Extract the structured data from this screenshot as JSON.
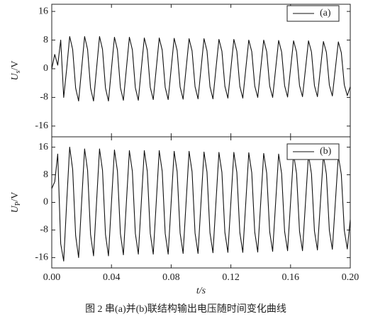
{
  "caption": "图 2  串(a)并(b)联结构输出电压随时间变化曲线",
  "chart_data": [
    {
      "type": "line",
      "y_label": "U",
      "y_label_sub": "s",
      "y_label_unit": "/V",
      "xlim": [
        0,
        0.2
      ],
      "xticks": [
        0,
        0.04,
        0.08,
        0.12,
        0.16,
        0.2
      ],
      "ylim": [
        -19,
        18
      ],
      "yticks": [
        -16,
        -8,
        0,
        8,
        16
      ],
      "legend": "upper right",
      "x": [
        0,
        0.002,
        0.004,
        0.006,
        0.008,
        0.01,
        0.012,
        0.014,
        0.016,
        0.018,
        0.02,
        0.022,
        0.024,
        0.026,
        0.028,
        0.03,
        0.032,
        0.034,
        0.036,
        0.038,
        0.04,
        0.042,
        0.044,
        0.046,
        0.048,
        0.05,
        0.052,
        0.054,
        0.056,
        0.058,
        0.06,
        0.062,
        0.064,
        0.066,
        0.068,
        0.07,
        0.072,
        0.074,
        0.076,
        0.078,
        0.08,
        0.082,
        0.084,
        0.086,
        0.088,
        0.09,
        0.092,
        0.094,
        0.096,
        0.098,
        0.1,
        0.102,
        0.104,
        0.106,
        0.108,
        0.11,
        0.112,
        0.114,
        0.116,
        0.118,
        0.12,
        0.122,
        0.124,
        0.126,
        0.128,
        0.13,
        0.132,
        0.134,
        0.136,
        0.138,
        0.14,
        0.142,
        0.144,
        0.146,
        0.148,
        0.15,
        0.152,
        0.154,
        0.156,
        0.158,
        0.16,
        0.162,
        0.164,
        0.166,
        0.168,
        0.17,
        0.172,
        0.174,
        0.176,
        0.178,
        0.18,
        0.182,
        0.184,
        0.186,
        0.188,
        0.19,
        0.192,
        0.194,
        0.196,
        0.198,
        0.2
      ],
      "series": [
        {
          "name": "(a)",
          "color": "#111111",
          "values": [
            0,
            4,
            1,
            8,
            -8,
            0,
            9,
            5.4,
            -5.4,
            -9,
            0,
            9,
            5.4,
            -5.4,
            -9,
            0,
            9,
            5.4,
            -5.4,
            -9,
            0,
            8.8,
            5.3,
            -5.3,
            -8.8,
            0,
            8.8,
            5.3,
            -5.3,
            -8.8,
            0,
            8.6,
            5.2,
            -5.2,
            -8.6,
            0,
            8.6,
            5.2,
            -5.2,
            -8.6,
            0,
            8.5,
            5.1,
            -5.1,
            -8.5,
            0,
            8.4,
            5,
            -5,
            -8.4,
            0,
            8.4,
            5,
            -5,
            -8.4,
            0,
            8.2,
            4.9,
            -4.9,
            -8.2,
            0,
            8.2,
            4.9,
            -4.9,
            -8.2,
            0,
            8,
            4.8,
            -4.8,
            -8,
            0,
            8,
            4.8,
            -4.8,
            -8,
            0,
            7.9,
            4.7,
            -4.7,
            -7.9,
            0,
            7.8,
            4.7,
            -4.7,
            -7.8,
            0,
            7.8,
            4.7,
            -4.7,
            -7.8,
            0,
            7.6,
            4.6,
            -4.6,
            -7.6,
            0,
            7.5,
            4.5,
            -4.5,
            -7.5,
            -5
          ]
        }
      ]
    },
    {
      "type": "line",
      "y_label": "U",
      "y_label_sub": "P",
      "y_label_unit": "/V",
      "x_label": "t/s",
      "xlim": [
        0,
        0.2
      ],
      "xticks": [
        {
          "value": 0,
          "label": "0.00"
        },
        0.04,
        0.08,
        0.12,
        0.16,
        {
          "value": 0.2,
          "label": "0.20"
        }
      ],
      "ylim": [
        -19,
        19
      ],
      "yticks": [
        -16,
        -8,
        0,
        8,
        16
      ],
      "legend": "upper right",
      "x": [
        0,
        0.002,
        0.004,
        0.006,
        0.008,
        0.01,
        0.012,
        0.014,
        0.016,
        0.018,
        0.02,
        0.022,
        0.024,
        0.026,
        0.028,
        0.03,
        0.032,
        0.034,
        0.036,
        0.038,
        0.04,
        0.042,
        0.044,
        0.046,
        0.048,
        0.05,
        0.052,
        0.054,
        0.056,
        0.058,
        0.06,
        0.062,
        0.064,
        0.066,
        0.068,
        0.07,
        0.072,
        0.074,
        0.076,
        0.078,
        0.08,
        0.082,
        0.084,
        0.086,
        0.088,
        0.09,
        0.092,
        0.094,
        0.096,
        0.098,
        0.1,
        0.102,
        0.104,
        0.106,
        0.108,
        0.11,
        0.112,
        0.114,
        0.116,
        0.118,
        0.12,
        0.122,
        0.124,
        0.126,
        0.128,
        0.13,
        0.132,
        0.134,
        0.136,
        0.138,
        0.14,
        0.142,
        0.144,
        0.146,
        0.148,
        0.15,
        0.152,
        0.154,
        0.156,
        0.158,
        0.16,
        0.162,
        0.164,
        0.166,
        0.168,
        0.17,
        0.172,
        0.174,
        0.176,
        0.178,
        0.18,
        0.182,
        0.184,
        0.186,
        0.188,
        0.19,
        0.192,
        0.194,
        0.196,
        0.198,
        0.2
      ],
      "series": [
        {
          "name": "(b)",
          "color": "#111111",
          "values": [
            4,
            6,
            14,
            -12,
            -17,
            0,
            16,
            9.6,
            -9.6,
            -16,
            0,
            15.5,
            9.3,
            -9.3,
            -15.5,
            0,
            15.5,
            9.3,
            -9.3,
            -15.5,
            0,
            15.2,
            9.1,
            -9.1,
            -15.2,
            0,
            15,
            9,
            -9,
            -15,
            0,
            15,
            9,
            -9,
            -15,
            0,
            15,
            9,
            -9,
            -15,
            0,
            14.8,
            8.9,
            -8.9,
            -14.8,
            0,
            14.8,
            8.9,
            -8.9,
            -14.8,
            0,
            14.6,
            8.8,
            -8.8,
            -14.6,
            0,
            14.5,
            8.7,
            -8.7,
            -14.5,
            0,
            14.5,
            8.7,
            -8.7,
            -14.5,
            0,
            14.4,
            8.6,
            -8.6,
            -14.4,
            0,
            14.2,
            8.5,
            -8.5,
            -14.2,
            0,
            14,
            8.4,
            -8.4,
            -14,
            0,
            14,
            8.4,
            -8.4,
            -14,
            0,
            13.8,
            8.3,
            -8.3,
            -13.8,
            0,
            13.6,
            8.2,
            -8.2,
            -13.6,
            0,
            13.5,
            8.1,
            -8.1,
            -13.5,
            -5
          ]
        }
      ]
    }
  ]
}
